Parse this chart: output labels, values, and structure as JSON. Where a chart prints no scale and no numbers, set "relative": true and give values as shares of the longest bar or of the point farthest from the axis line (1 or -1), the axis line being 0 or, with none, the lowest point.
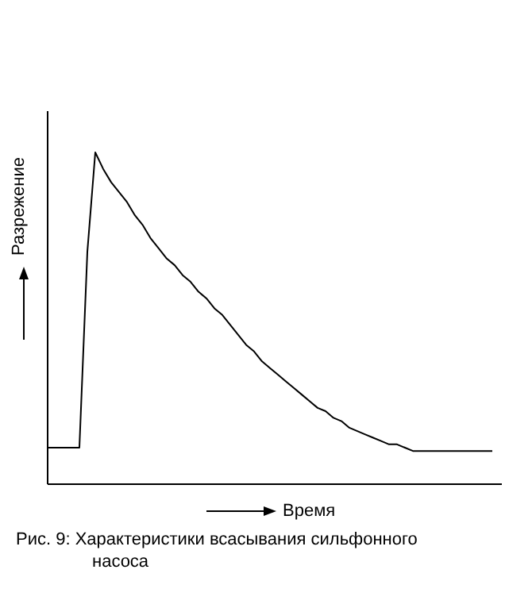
{
  "chart_data": {
    "type": "line",
    "relative": true,
    "color": "#000000",
    "xlabel": "Время",
    "ylabel": "Разрежение",
    "annotations": [
      "Рис. 9: Характеристики всасывания сильфонного насоса"
    ],
    "categories": [
      null,
      null,
      null,
      null,
      null,
      null,
      null,
      null,
      null,
      null,
      null,
      null,
      null,
      null,
      null,
      null,
      null,
      null,
      null,
      null,
      null,
      null,
      null,
      null,
      null,
      null,
      null,
      null,
      null,
      null,
      null,
      null,
      null,
      null,
      null,
      null,
      null,
      null,
      null,
      null,
      null,
      null,
      null,
      null,
      null,
      null,
      null,
      null,
      null,
      null,
      null,
      null,
      null,
      null,
      null,
      null,
      null
    ],
    "values": [
      0.11,
      0.11,
      0.11,
      0.11,
      0.11,
      0.7,
      1,
      0.95,
      0.91,
      0.88,
      0.85,
      0.81,
      0.78,
      0.74,
      0.71,
      0.68,
      0.66,
      0.63,
      0.61,
      0.58,
      0.56,
      0.53,
      0.51,
      0.48,
      0.45,
      0.42,
      0.4,
      0.37,
      0.35,
      0.33,
      0.31,
      0.29,
      0.27,
      0.25,
      0.23,
      0.22,
      0.2,
      0.19,
      0.17,
      0.16,
      0.15,
      0.14,
      0.13,
      0.12,
      0.12,
      0.11,
      0.1,
      0.1,
      0.1,
      0.1,
      0.1,
      0.1,
      0.1,
      0.1,
      0.1,
      0.1,
      0.1
    ],
    "grid": false,
    "legend": false,
    "marker": "none",
    "line_style": "solid"
  }
}
